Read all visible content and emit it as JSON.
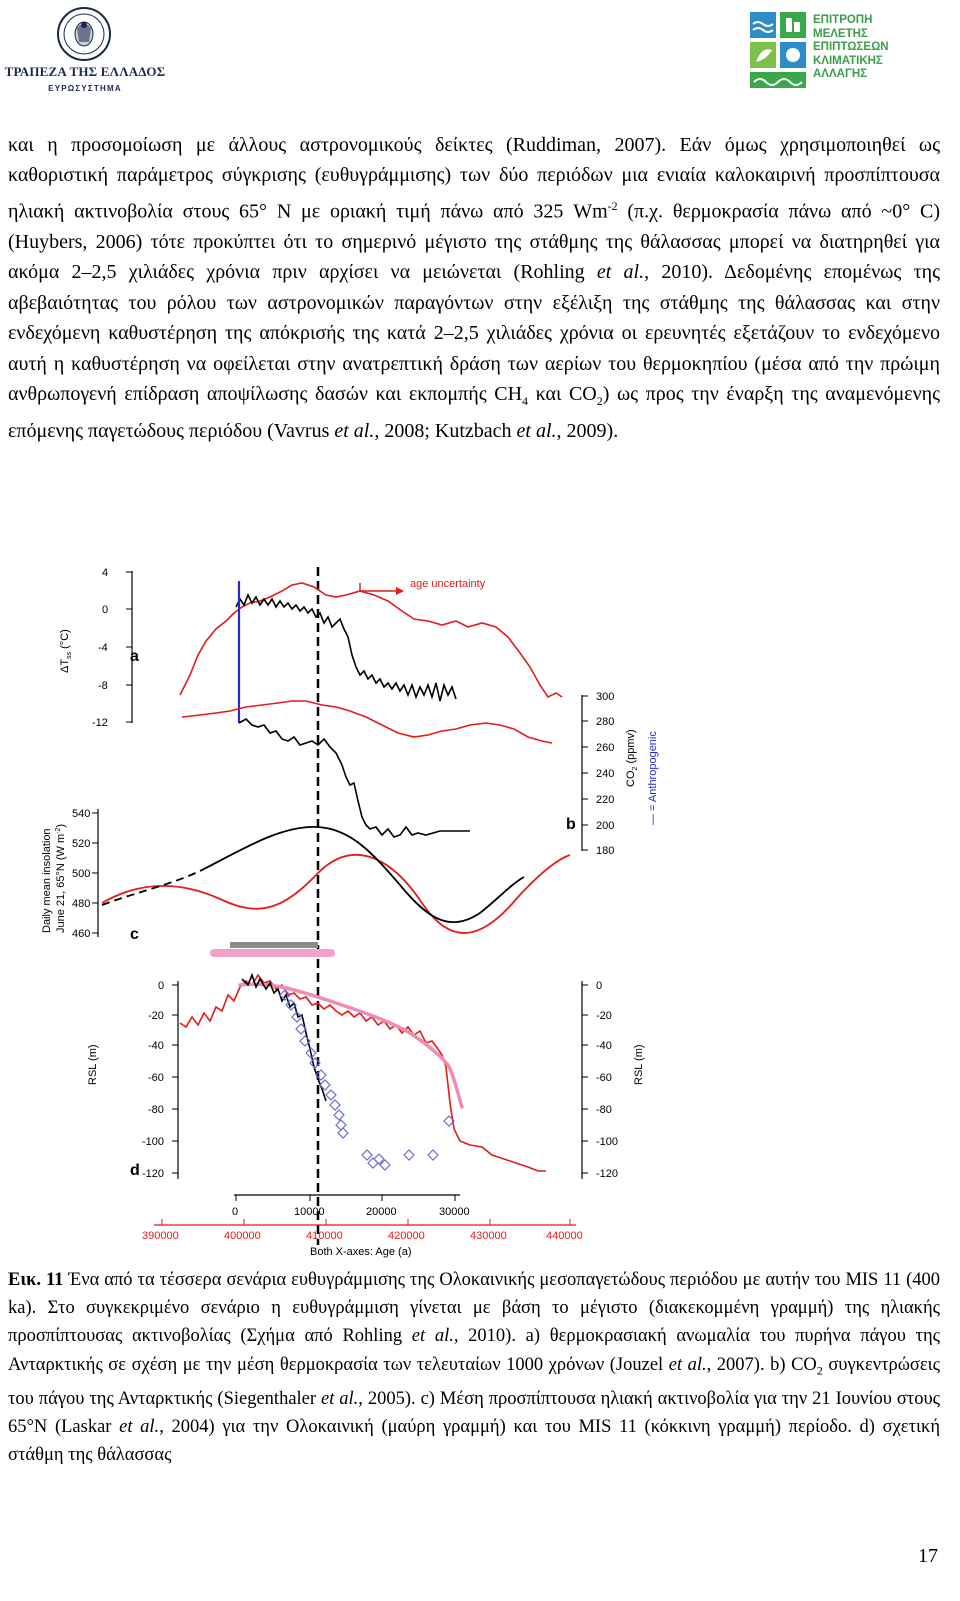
{
  "header": {
    "bank_name": "ΤΡΑΠΕΖΑ ΤΗΣ ΕΛΛΑΔΟΣ",
    "bank_sub": "ΕΥΡΩΣΥΣΤΗΜΑ",
    "committee_lines": [
      "ΕΠΙΤΡΟΠΗ",
      "ΜΕΛΕΤΗΣ",
      "ΕΠΙΠΤΩΣΕΩΝ",
      "ΚΛΙΜΑΤΙΚΗΣ",
      "ΑΛΛΑΓΗΣ"
    ],
    "seal_text": "ΤΡΑΠΕΖΑ ΤΗΣ ΕΛΛΑΔΟΣ 1928"
  },
  "body": {
    "p1_a": "και η προσομοίωση με άλλους αστρονομικούς δείκτες (Ruddiman, 2007). Εάν όμως χρησιμοποιηθεί ως καθοριστική παράμετρος σύγκρισης (ευθυγράμμισης) των δύο περιόδων μια ενιαία καλοκαιρινή προσπίπτουσα ηλιακή ακτινοβολία στους 65° Ν με οριακή τιμή πάνω από 325 Wm",
    "p1_sup": "-2",
    "p1_b": " (π.χ. θερμοκρασία πάνω από ~0° C) (Huybers, 2006) τότε προκύπτει ότι το σημερινό μέγιστο της στάθμης της θάλασσας μπορεί να διατηρηθεί για ακόμα 2–2,5 χιλιάδες χρόνια πριν αρχίσει να μειώνεται (Rohling ",
    "p1_etal": "et al.",
    "p1_c": ", 2010). Δεδομένης επομένως της αβεβαιότητας του ρόλου των αστρονομικών παραγόντων στην εξέλιξη της στάθμης της θάλασσας και στην ενδεχόμενη καθυστέρηση της απόκρισής της κατά 2–2,5 χιλιάδες χρόνια οι ερευνητές εξετάζουν το ενδεχόμενο αυτή η καθυστέρηση να οφείλεται στην ανατρεπτική δράση των αερίων του θερμοκηπίου (μέσα από την πρώιμη ανθρωπογενή επίδραση αποψίλωσης δασών και εκπομπής CH",
    "p1_sub4": "4",
    "p1_d": " και CO",
    "p1_sub2": "2",
    "p1_e": ") ως προς την έναρξη της αναμενόμενης επόμενης παγετώδους περιόδου (Vavrus ",
    "p1_etal2": "et al.",
    "p1_f": ", 2008; Kutzbach ",
    "p1_etal3": "et al.",
    "p1_g": ", 2009)."
  },
  "figure": {
    "age_uncertainty": "age uncertainty",
    "panel_a": "a",
    "panel_b": "b",
    "panel_c": "c",
    "panel_d": "d",
    "ylabel_a": "ΔT",
    "ylabel_a_sub": "ss",
    "ylabel_a_unit": " (°C)",
    "ylabel_b": "CO",
    "ylabel_b_unit": " (ppmv)",
    "anthropogenic": "— = Anthropogenic",
    "ylabel_c1": "Daily mean insolation",
    "ylabel_c2": "June 21, 65°N (W m",
    "ylabel_c2_sup": "-2",
    "ylabel_c2_end": ")",
    "ylabel_d": "RSL (m)",
    "xlabel": "Both X-axes: Age (a)",
    "ticks_a": [
      "4",
      "0",
      "-4",
      "-8",
      "-12"
    ],
    "ticks_b": [
      "300",
      "280",
      "260",
      "240",
      "220",
      "200",
      "180"
    ],
    "ticks_c": [
      "540",
      "520",
      "500",
      "480",
      "460"
    ],
    "ticks_d": [
      "0",
      "-20",
      "-40",
      "-60",
      "-80",
      "-100",
      "-120"
    ],
    "ticks_x_black": [
      "0",
      "10000",
      "20000",
      "30000"
    ],
    "ticks_x_red": [
      "390000",
      "400000",
      "410000",
      "420000",
      "430000",
      "440000"
    ],
    "colors": {
      "holocene": "#000000",
      "mis11": "#e21b1b",
      "rsl_fit": "#f08cb4",
      "diamonds": "#6a6ad8",
      "anthropogenic": "#2a2acf",
      "grey_bar": "#8c8c8c",
      "pink_bar": "#f4a0c8"
    }
  },
  "caption": {
    "label": "Εικ. 11",
    "t1": " Ένα από τα τέσσερα σενάρια ευθυγράμμισης της Ολοκαινικής μεσοπαγετώδους περιόδου με αυτήν του MIS 11 (400 ka). Στο συγκεκριμένο σενάριο η ευθυγράμμιση γίνεται με βάση το μέγιστο (διακεκομμένη γραμμή) της ηλιακής προσπίπτουσας ακτινοβολίας (Σχήμα από Rohling ",
    "etal1": "et al.",
    "t2": ", 2010). a) θερμοκρασιακή ανωμαλία του πυρήνα πάγου της Ανταρκτικής σε σχέση με την μέση θερμοκρασία των τελευταίων 1000 χρόνων (Jouzel ",
    "etal2": "et al.",
    "t3": ", 2007).  b) CO",
    "sub2a": "2",
    "t4": " συγκεντρώσεις του πάγου της Ανταρκτικής (Siegenthaler ",
    "etal3": "et al.",
    "t5": ", 2005).  c) Μέση προσπίπτουσα ηλιακή ακτινοβολία για την 21 Ιουνίου στους 65°N (Laskar ",
    "etal4": "et al.",
    "t6": ", 2004) για την Ολοκαινική (μαύρη γραμμή) και του MIS 11 (κόκκινη γραμμή) περίοδο.  d) σχετική στάθμη της θάλασσας"
  },
  "page_number": "17"
}
